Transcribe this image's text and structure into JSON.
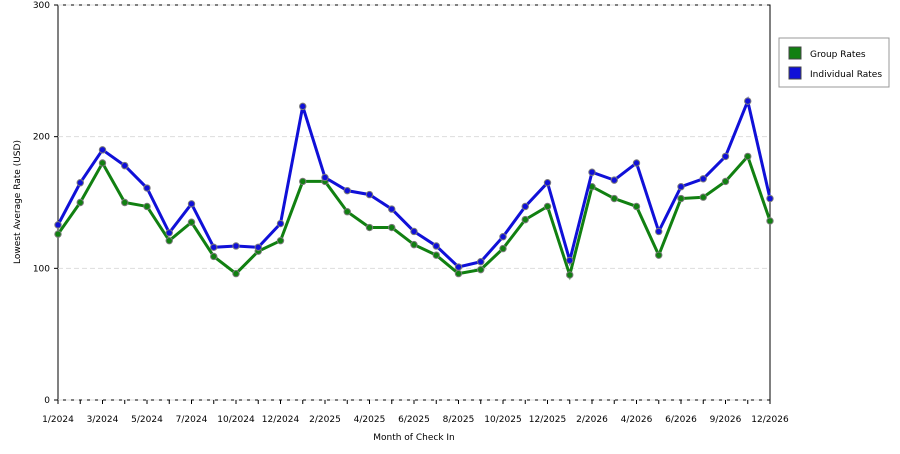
{
  "chart_data": {
    "type": "line",
    "x_label": "Month of Check In",
    "y_label": "Lowest Average Rate (USD)",
    "categories": [
      "1/2024",
      null,
      "3/2024",
      null,
      "5/2024",
      null,
      "7/2024",
      null,
      "10/2024",
      null,
      "12/2024",
      null,
      "2/2025",
      null,
      "4/2025",
      null,
      "6/2025",
      null,
      "8/2025",
      null,
      "10/2025",
      null,
      "12/2025",
      null,
      "2/2026",
      null,
      "4/2026",
      null,
      "6/2026",
      null,
      "9/2026",
      null,
      "12/2026"
    ],
    "series": [
      {
        "name": "Group Rates",
        "color": "#118011",
        "values": [
          126,
          150,
          180,
          150,
          147,
          121,
          135,
          109,
          96,
          113,
          121,
          166,
          166,
          143,
          131,
          131,
          118,
          110,
          96,
          99,
          115,
          137,
          147,
          95,
          162,
          153,
          147,
          110,
          153,
          154,
          166,
          185,
          136
        ]
      },
      {
        "name": "Individual Rates",
        "color": "#1010d8",
        "values": [
          133,
          165,
          190,
          178,
          161,
          127,
          149,
          116,
          117,
          116,
          134,
          223,
          169,
          159,
          156,
          145,
          128,
          117,
          101,
          105,
          124,
          147,
          165,
          106,
          173,
          167,
          180,
          128,
          162,
          168,
          185,
          227,
          153
        ]
      }
    ],
    "ylim": [
      0,
      300
    ],
    "yticks": [
      0,
      100,
      200,
      300
    ],
    "grid": true,
    "legend": "right"
  }
}
